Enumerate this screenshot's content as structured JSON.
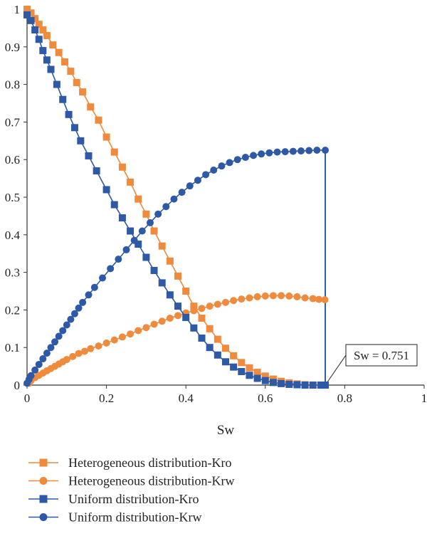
{
  "chart_data": {
    "type": "line",
    "title": "",
    "xlabel": "Sw",
    "ylabel": "",
    "xlim": [
      0,
      1
    ],
    "ylim": [
      0,
      1
    ],
    "x_ticks": [
      0,
      0.2,
      0.4,
      0.6,
      0.8,
      1
    ],
    "x_tick_labels": [
      "0",
      "0.2",
      "0.4",
      "0.6",
      "0.8",
      "1"
    ],
    "y_ticks": [
      0,
      0.1,
      0.2,
      0.3,
      0.4,
      0.5,
      0.6,
      0.7,
      0.8,
      0.9,
      1
    ],
    "y_tick_labels": [
      "0",
      "0.1",
      "0.2",
      "0.3",
      "0.4",
      "0.5",
      "0.6",
      "0.7",
      "0.8",
      "0.9",
      "1"
    ],
    "grid": false,
    "legend_position": "bottom",
    "series": [
      {
        "name": "Heterogeneous distribution-Kro",
        "color": "#F08A3C",
        "marker": "square",
        "points": [
          [
            0.0,
            1.0
          ],
          [
            0.01,
            0.99
          ],
          [
            0.02,
            0.975
          ],
          [
            0.03,
            0.96
          ],
          [
            0.04,
            0.945
          ],
          [
            0.05,
            0.93
          ],
          [
            0.065,
            0.905
          ],
          [
            0.08,
            0.885
          ],
          [
            0.095,
            0.86
          ],
          [
            0.11,
            0.835
          ],
          [
            0.125,
            0.805
          ],
          [
            0.14,
            0.78
          ],
          [
            0.16,
            0.74
          ],
          [
            0.18,
            0.705
          ],
          [
            0.2,
            0.66
          ],
          [
            0.22,
            0.62
          ],
          [
            0.24,
            0.58
          ],
          [
            0.26,
            0.54
          ],
          [
            0.28,
            0.495
          ],
          [
            0.3,
            0.455
          ],
          [
            0.32,
            0.41
          ],
          [
            0.34,
            0.37
          ],
          [
            0.36,
            0.33
          ],
          [
            0.38,
            0.29
          ],
          [
            0.4,
            0.25
          ],
          [
            0.42,
            0.21
          ],
          [
            0.44,
            0.178
          ],
          [
            0.46,
            0.15
          ],
          [
            0.48,
            0.122
          ],
          [
            0.5,
            0.098
          ],
          [
            0.52,
            0.078
          ],
          [
            0.54,
            0.06
          ],
          [
            0.56,
            0.046
          ],
          [
            0.58,
            0.034
          ],
          [
            0.6,
            0.024
          ],
          [
            0.62,
            0.016
          ],
          [
            0.64,
            0.01
          ],
          [
            0.66,
            0.006
          ],
          [
            0.68,
            0.003
          ],
          [
            0.7,
            0.001
          ],
          [
            0.72,
            0.0
          ],
          [
            0.74,
            0.0
          ]
        ]
      },
      {
        "name": "Heterogeneous distribution-Krw",
        "color": "#F08A3C",
        "marker": "circle",
        "points": [
          [
            0.005,
            0.005
          ],
          [
            0.01,
            0.012
          ],
          [
            0.02,
            0.02
          ],
          [
            0.03,
            0.026
          ],
          [
            0.04,
            0.032
          ],
          [
            0.05,
            0.038
          ],
          [
            0.06,
            0.044
          ],
          [
            0.07,
            0.05
          ],
          [
            0.08,
            0.056
          ],
          [
            0.09,
            0.062
          ],
          [
            0.1,
            0.068
          ],
          [
            0.115,
            0.076
          ],
          [
            0.13,
            0.084
          ],
          [
            0.145,
            0.09
          ],
          [
            0.16,
            0.097
          ],
          [
            0.18,
            0.104
          ],
          [
            0.2,
            0.112
          ],
          [
            0.22,
            0.12
          ],
          [
            0.24,
            0.128
          ],
          [
            0.26,
            0.136
          ],
          [
            0.28,
            0.145
          ],
          [
            0.3,
            0.153
          ],
          [
            0.32,
            0.162
          ],
          [
            0.34,
            0.17
          ],
          [
            0.36,
            0.178
          ],
          [
            0.38,
            0.185
          ],
          [
            0.4,
            0.192
          ],
          [
            0.42,
            0.198
          ],
          [
            0.44,
            0.204
          ],
          [
            0.46,
            0.21
          ],
          [
            0.48,
            0.215
          ],
          [
            0.5,
            0.22
          ],
          [
            0.52,
            0.225
          ],
          [
            0.54,
            0.229
          ],
          [
            0.56,
            0.232
          ],
          [
            0.58,
            0.235
          ],
          [
            0.6,
            0.237
          ],
          [
            0.62,
            0.238
          ],
          [
            0.64,
            0.238
          ],
          [
            0.66,
            0.237
          ],
          [
            0.68,
            0.235
          ],
          [
            0.7,
            0.232
          ],
          [
            0.72,
            0.23
          ],
          [
            0.735,
            0.228
          ],
          [
            0.75,
            0.227
          ]
        ]
      },
      {
        "name": "Uniform distribution-Kro",
        "color": "#2E59A7",
        "marker": "square",
        "points": [
          [
            0.0,
            0.985
          ],
          [
            0.01,
            0.97
          ],
          [
            0.02,
            0.945
          ],
          [
            0.03,
            0.92
          ],
          [
            0.04,
            0.89
          ],
          [
            0.05,
            0.865
          ],
          [
            0.06,
            0.84
          ],
          [
            0.075,
            0.8
          ],
          [
            0.09,
            0.76
          ],
          [
            0.105,
            0.72
          ],
          [
            0.12,
            0.685
          ],
          [
            0.135,
            0.65
          ],
          [
            0.155,
            0.61
          ],
          [
            0.175,
            0.57
          ],
          [
            0.2,
            0.52
          ],
          [
            0.22,
            0.48
          ],
          [
            0.24,
            0.445
          ],
          [
            0.26,
            0.41
          ],
          [
            0.28,
            0.375
          ],
          [
            0.3,
            0.34
          ],
          [
            0.32,
            0.305
          ],
          [
            0.34,
            0.272
          ],
          [
            0.36,
            0.24
          ],
          [
            0.38,
            0.21
          ],
          [
            0.4,
            0.18
          ],
          [
            0.42,
            0.152
          ],
          [
            0.44,
            0.125
          ],
          [
            0.46,
            0.1
          ],
          [
            0.48,
            0.08
          ],
          [
            0.5,
            0.062
          ],
          [
            0.52,
            0.048
          ],
          [
            0.54,
            0.036
          ],
          [
            0.56,
            0.026
          ],
          [
            0.58,
            0.018
          ],
          [
            0.6,
            0.012
          ],
          [
            0.62,
            0.007
          ],
          [
            0.64,
            0.004
          ],
          [
            0.66,
            0.002
          ],
          [
            0.68,
            0.001
          ],
          [
            0.7,
            0.0
          ],
          [
            0.72,
            0.0
          ],
          [
            0.74,
            0.0
          ],
          [
            0.751,
            0.0
          ]
        ]
      },
      {
        "name": "Uniform distribution-Krw",
        "color": "#2E59A7",
        "marker": "circle",
        "points": [
          [
            0.0,
            0.005
          ],
          [
            0.005,
            0.015
          ],
          [
            0.01,
            0.025
          ],
          [
            0.02,
            0.04
          ],
          [
            0.03,
            0.055
          ],
          [
            0.04,
            0.07
          ],
          [
            0.05,
            0.085
          ],
          [
            0.06,
            0.1
          ],
          [
            0.07,
            0.115
          ],
          [
            0.08,
            0.13
          ],
          [
            0.09,
            0.145
          ],
          [
            0.1,
            0.16
          ],
          [
            0.11,
            0.175
          ],
          [
            0.12,
            0.19
          ],
          [
            0.13,
            0.205
          ],
          [
            0.14,
            0.22
          ],
          [
            0.155,
            0.24
          ],
          [
            0.17,
            0.26
          ],
          [
            0.19,
            0.285
          ],
          [
            0.21,
            0.31
          ],
          [
            0.23,
            0.335
          ],
          [
            0.25,
            0.36
          ],
          [
            0.27,
            0.385
          ],
          [
            0.29,
            0.41
          ],
          [
            0.31,
            0.432
          ],
          [
            0.33,
            0.455
          ],
          [
            0.35,
            0.475
          ],
          [
            0.37,
            0.495
          ],
          [
            0.39,
            0.513
          ],
          [
            0.41,
            0.53
          ],
          [
            0.43,
            0.545
          ],
          [
            0.45,
            0.56
          ],
          [
            0.47,
            0.572
          ],
          [
            0.49,
            0.583
          ],
          [
            0.51,
            0.592
          ],
          [
            0.53,
            0.6
          ],
          [
            0.55,
            0.606
          ],
          [
            0.57,
            0.611
          ],
          [
            0.59,
            0.615
          ],
          [
            0.61,
            0.618
          ],
          [
            0.63,
            0.62
          ],
          [
            0.65,
            0.621
          ],
          [
            0.67,
            0.622
          ],
          [
            0.69,
            0.623
          ],
          [
            0.71,
            0.624
          ],
          [
            0.73,
            0.625
          ],
          [
            0.751,
            0.625
          ]
        ]
      }
    ],
    "annotation": {
      "text": "Sw = 0.751",
      "x": 0.751,
      "y": 0.0,
      "vline": {
        "x": 0.751,
        "y_from": 0.0,
        "y_to": 0.625,
        "color": "#2E59A7"
      }
    }
  }
}
